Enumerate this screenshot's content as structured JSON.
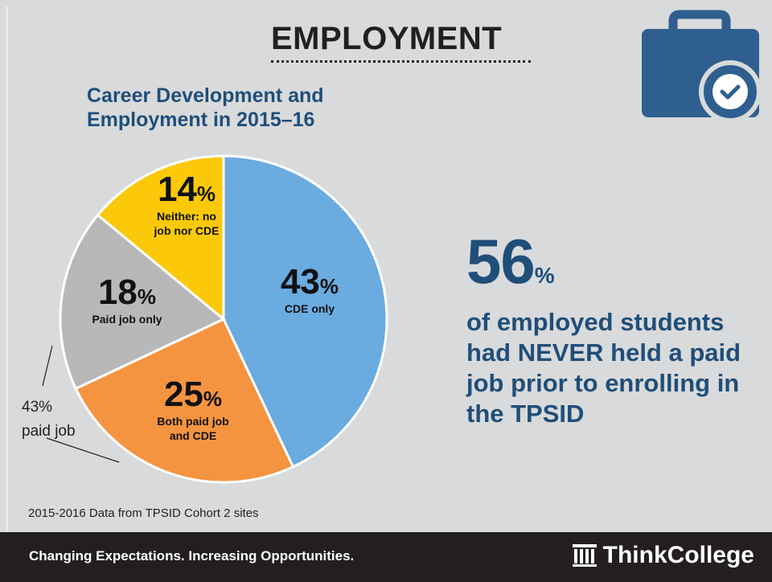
{
  "header": {
    "title": "EMPLOYMENT",
    "icon": "briefcase-check-icon"
  },
  "chart_data": {
    "type": "pie",
    "title": "Career Development and Employment in 2015–16",
    "title_lines": [
      "Career Development and",
      "Employment in 2015–16"
    ],
    "slices": [
      {
        "label": "CDE only",
        "label_lines": [
          "CDE only"
        ],
        "value": 43,
        "display": "43",
        "color": "#6aabe0"
      },
      {
        "label": "Both paid job and CDE",
        "label_lines": [
          "Both paid job",
          "and CDE"
        ],
        "value": 25,
        "display": "25",
        "color": "#f59440"
      },
      {
        "label": "Paid job only",
        "label_lines": [
          "Paid job only"
        ],
        "value": 18,
        "display": "18",
        "color": "#b8b8b9"
      },
      {
        "label": "Neither: no job nor CDE",
        "label_lines": [
          "Neither: no",
          "job nor CDE"
        ],
        "value": 14,
        "display": "14",
        "color": "#fcc90a"
      }
    ],
    "start": "top",
    "direction": "clockwise",
    "annotation": {
      "lines": [
        "43%",
        "paid job"
      ]
    }
  },
  "highlight": {
    "number": "56",
    "unit": "%",
    "text": "of employed students had NEVER held a paid job prior to enrolling in the TPSID"
  },
  "source": "2015-2016 Data from TPSID Cohort 2 sites",
  "footer": {
    "tagline": "Changing Expectations. Increasing Opportunities.",
    "brand": "ThinkCollege",
    "brand_icon": "building-columns-icon"
  },
  "colors": {
    "navy": "#1f4e79",
    "icon_blue": "#2e5f8f",
    "background": "#d9dadb",
    "footer_bg": "#231f20"
  }
}
